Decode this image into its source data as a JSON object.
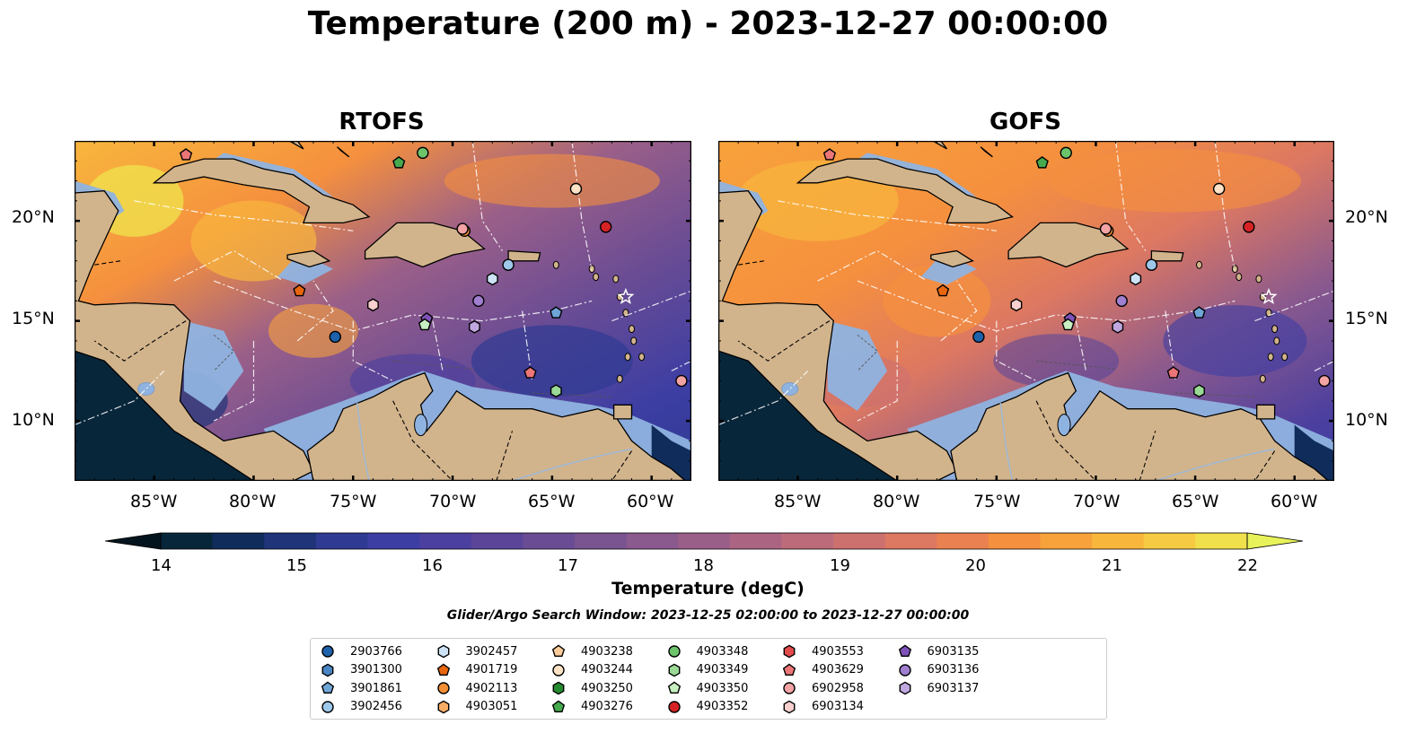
{
  "title": "Temperature (200 m) - 2023-12-27 00:00:00",
  "panels": [
    {
      "title": "RTOFS"
    },
    {
      "title": "GOFS"
    }
  ],
  "lon_ticks": [
    "85°W",
    "80°W",
    "75°W",
    "70°W",
    "65°W",
    "60°W"
  ],
  "lat_ticks": [
    "20°N",
    "15°N",
    "10°N"
  ],
  "map_extent": {
    "lon": [
      -89,
      -58
    ],
    "lat": [
      7,
      24
    ]
  },
  "colorbar": {
    "label": "Temperature (degC)",
    "ticks": [
      "14",
      "15",
      "16",
      "17",
      "18",
      "19",
      "20",
      "21",
      "22"
    ],
    "colors": [
      "#08263a",
      "#102c5a",
      "#1f3479",
      "#2f3a93",
      "#3d3ea3",
      "#4b3f9f",
      "#5b4599",
      "#6a4c94",
      "#7a5391",
      "#8a598e",
      "#9a5f89",
      "#ab6582",
      "#bc6b7a",
      "#cd716f",
      "#dd7862",
      "#ea8150",
      "#f5903e",
      "#f8a23b",
      "#f8b63d",
      "#f6ca42",
      "#f0e04c"
    ],
    "under_color": "#04141f",
    "over_color": "#e8f25a"
  },
  "search_window": "Glider/Argo Search Window: 2023-12-25 02:00:00 to 2023-12-27 00:00:00",
  "legend": [
    {
      "id": "2903766",
      "marker": "circle",
      "color": "#1f62ac"
    },
    {
      "id": "3901300",
      "marker": "hexagon",
      "color": "#4a85c4"
    },
    {
      "id": "3901861",
      "marker": "pentagon",
      "color": "#6fa6d8"
    },
    {
      "id": "3902456",
      "marker": "circle",
      "color": "#9ec8ea"
    },
    {
      "id": "3902457",
      "marker": "hexagon",
      "color": "#cde3f5"
    },
    {
      "id": "4901719",
      "marker": "pentagon",
      "color": "#e8660e"
    },
    {
      "id": "4902113",
      "marker": "circle",
      "color": "#f28e34"
    },
    {
      "id": "4903051",
      "marker": "hexagon",
      "color": "#f8ad66"
    },
    {
      "id": "4903238",
      "marker": "pentagon",
      "color": "#fbcc99"
    },
    {
      "id": "4903244",
      "marker": "circle",
      "color": "#fde2c6"
    },
    {
      "id": "4903250",
      "marker": "hexagon",
      "color": "#238b2e"
    },
    {
      "id": "4903276",
      "marker": "pentagon",
      "color": "#46a94d"
    },
    {
      "id": "4903348",
      "marker": "circle",
      "color": "#6cc46b"
    },
    {
      "id": "4903349",
      "marker": "hexagon",
      "color": "#9ad996"
    },
    {
      "id": "4903350",
      "marker": "pentagon",
      "color": "#c7efc1"
    },
    {
      "id": "4903352",
      "marker": "circle",
      "color": "#d62225"
    },
    {
      "id": "4903553",
      "marker": "hexagon",
      "color": "#e24a4b"
    },
    {
      "id": "4903629",
      "marker": "pentagon",
      "color": "#ec7677"
    },
    {
      "id": "6902958",
      "marker": "circle",
      "color": "#f3a3a3"
    },
    {
      "id": "6903134",
      "marker": "hexagon",
      "color": "#f9d0cf"
    },
    {
      "id": "6903135",
      "marker": "pentagon",
      "color": "#7e52b8"
    },
    {
      "id": "6903136",
      "marker": "circle",
      "color": "#a07ed0"
    },
    {
      "id": "6903137",
      "marker": "hexagon",
      "color": "#c0a7e0"
    }
  ],
  "observations": [
    {
      "id": "4903629",
      "lon": -83.4,
      "lat": 23.3
    },
    {
      "id": "4903276",
      "lon": -72.7,
      "lat": 22.9
    },
    {
      "id": "4903348",
      "lon": -71.5,
      "lat": 23.4
    },
    {
      "id": "4903244",
      "lon": -63.8,
      "lat": 21.6
    },
    {
      "id": "4903352",
      "lon": -62.3,
      "lat": 19.7
    },
    {
      "id": "4902113",
      "lon": -69.4,
      "lat": 19.5
    },
    {
      "id": "6902958",
      "lon": -69.5,
      "lat": 19.6
    },
    {
      "id": "3902456",
      "lon": -67.2,
      "lat": 17.8
    },
    {
      "id": "3902457",
      "lon": -68.0,
      "lat": 17.1
    },
    {
      "id": "4901719",
      "lon": -77.7,
      "lat": 16.5
    },
    {
      "id": "6903134",
      "lon": -74.0,
      "lat": 15.8
    },
    {
      "id": "6903136",
      "lon": -68.7,
      "lat": 16.0
    },
    {
      "id": "6903135",
      "lon": -71.3,
      "lat": 15.1
    },
    {
      "id": "4903350",
      "lon": -71.4,
      "lat": 14.8
    },
    {
      "id": "6903137",
      "lon": -68.9,
      "lat": 14.7
    },
    {
      "id": "3901861",
      "lon": -64.8,
      "lat": 15.4
    },
    {
      "id": "2903766",
      "lon": -75.9,
      "lat": 14.2
    },
    {
      "id": "4903629",
      "lon": -66.1,
      "lat": 12.4
    },
    {
      "id": "4903349",
      "lon": -64.8,
      "lat": 11.5
    },
    {
      "id": "6902958",
      "lon": -58.5,
      "lat": 12.0
    }
  ]
}
